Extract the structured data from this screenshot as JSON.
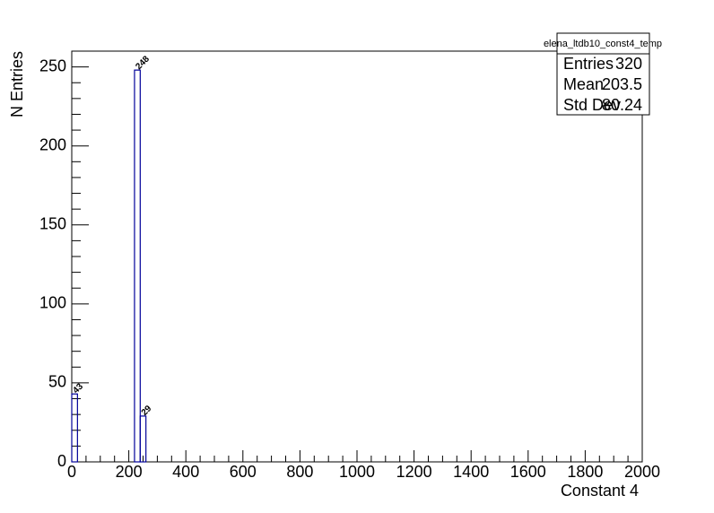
{
  "chart_data": {
    "type": "histogram",
    "x_label": "Constant 4",
    "y_label": "N Entries",
    "bins": [
      0,
      20,
      40,
      60,
      80,
      100,
      120,
      140,
      160,
      180,
      200,
      220,
      240,
      260,
      280,
      300,
      320,
      340,
      360,
      380,
      400,
      420,
      440,
      460,
      480,
      500,
      520,
      540,
      560,
      580,
      600,
      620,
      640,
      660,
      680,
      700,
      720,
      740,
      760,
      780,
      800,
      820,
      840,
      860,
      880,
      900,
      920,
      940,
      960,
      980,
      1000,
      1020,
      1040,
      1060,
      1080,
      1100,
      1120,
      1140,
      1160,
      1180,
      1200,
      1220,
      1240,
      1260,
      1280,
      1300,
      1320,
      1340,
      1360,
      1380,
      1400,
      1420,
      1440,
      1460,
      1480,
      1500,
      1520,
      1540,
      1560,
      1580,
      1600,
      1620,
      1640,
      1660,
      1680,
      1700,
      1720,
      1740,
      1760,
      1780,
      1800,
      1820,
      1840,
      1860,
      1880,
      1900,
      1920,
      1940,
      1960,
      1980,
      2000
    ],
    "values": [
      43,
      0,
      0,
      0,
      0,
      0,
      0,
      0,
      0,
      0,
      0,
      248,
      29,
      0,
      0,
      0,
      0,
      0,
      0,
      0,
      0,
      0,
      0,
      0,
      0,
      0,
      0,
      0,
      0,
      0,
      0,
      0,
      0,
      0,
      0,
      0,
      0,
      0,
      0,
      0,
      0,
      0,
      0,
      0,
      0,
      0,
      0,
      0,
      0,
      0,
      0,
      0,
      0,
      0,
      0,
      0,
      0,
      0,
      0,
      0,
      0,
      0,
      0,
      0,
      0,
      0,
      0,
      0,
      0,
      0,
      0,
      0,
      0,
      0,
      0,
      0,
      0,
      0,
      0,
      0,
      0,
      0,
      0,
      0,
      0,
      0,
      0,
      0,
      0,
      0,
      0,
      0,
      0,
      0,
      0,
      0,
      0,
      0,
      0,
      0
    ],
    "color": "#000099",
    "xlim": [
      0,
      2000
    ],
    "xticks": [
      0,
      200,
      400,
      600,
      800,
      1000,
      1200,
      1400,
      1600,
      1800,
      2000
    ],
    "ylim": [
      0,
      260
    ],
    "yticks": [
      0,
      50,
      100,
      150,
      200,
      250
    ],
    "stats": {
      "title": "elena_ltdb10_const4_temp",
      "rows": [
        [
          "Entries",
          320
        ],
        [
          "Mean",
          203.5
        ],
        [
          "Std Dev",
          80.24
        ]
      ]
    }
  }
}
